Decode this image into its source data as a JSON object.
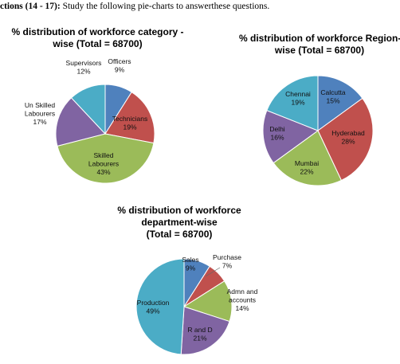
{
  "heading": {
    "bold_part": "ctions (14 - 17):",
    "rest": " Study the following pie-charts to answerthese questions."
  },
  "chart_data": [
    {
      "type": "pie",
      "title_lines": [
        "% distribution of workforce category -",
        "wise (Total = 68700)"
      ],
      "slices": [
        {
          "name": "Officers",
          "value": 9,
          "label": "9%",
          "color": "#4f81bd"
        },
        {
          "name": "Technicians",
          "value": 19,
          "label": "19%",
          "color": "#c0504d"
        },
        {
          "name": "Skilled Labourers",
          "value": 43,
          "label": "43%",
          "color": "#9bbb59"
        },
        {
          "name": "Un Skilled Labourers",
          "value": 17,
          "label": "17%",
          "color": "#8064a2"
        },
        {
          "name": "Supervisors",
          "value": 12,
          "label": "12%",
          "color": "#4bacc6"
        }
      ]
    },
    {
      "type": "pie",
      "title_lines": [
        "% distribution of workforce Region-",
        "wise (Total = 68700)"
      ],
      "slices": [
        {
          "name": "Calcutta",
          "value": 15,
          "label": "15%",
          "color": "#4f81bd"
        },
        {
          "name": "Hyderabad",
          "value": 28,
          "label": "28%",
          "color": "#c0504d"
        },
        {
          "name": "Mumbai",
          "value": 22,
          "label": "22%",
          "color": "#9bbb59"
        },
        {
          "name": "Delhi",
          "value": 16,
          "label": "16%",
          "color": "#8064a2"
        },
        {
          "name": "Chennai",
          "value": 19,
          "label": "19%",
          "color": "#4bacc6"
        }
      ]
    },
    {
      "type": "pie",
      "title_lines": [
        "% distribution of workforce",
        "department-wise",
        "(Total = 68700)"
      ],
      "slices": [
        {
          "name": "Sales",
          "value": 9,
          "label": "9%",
          "color": "#4f81bd"
        },
        {
          "name": "Purchase",
          "value": 7,
          "label": "7%",
          "color": "#c0504d"
        },
        {
          "name": "Admn and accounts",
          "value": 14,
          "label": "14%",
          "color": "#9bbb59"
        },
        {
          "name": "R and D",
          "value": 21,
          "label": "21%",
          "color": "#8064a2"
        },
        {
          "name": "Production",
          "value": 49,
          "label": "49%",
          "color": "#4bacc6"
        }
      ]
    }
  ]
}
